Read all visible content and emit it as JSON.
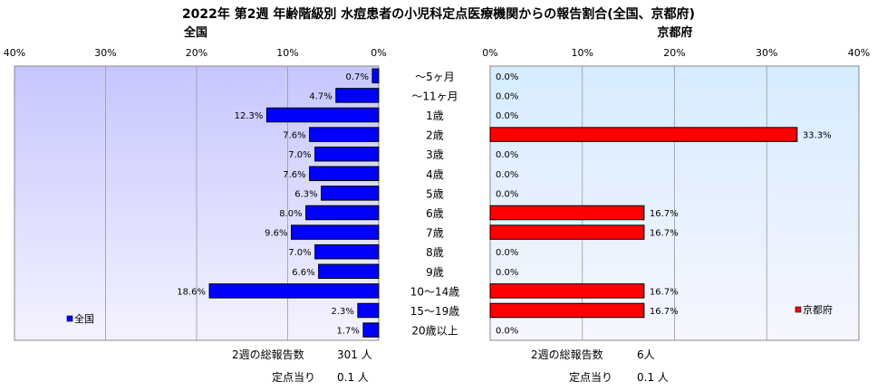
{
  "chart_data": [
    {
      "type": "bar",
      "orientation": "horizontal",
      "direction": "right-to-left",
      "title": "2022年 第2週 年齢階級別 水痘患者の小児科定点医療機関からの報告割合(全国、京都府)",
      "panel_title": "全国",
      "categories": [
        "～5ヶ月",
        "～11ヶ月",
        "1歳",
        "2歳",
        "3歳",
        "4歳",
        "5歳",
        "6歳",
        "7歳",
        "8歳",
        "9歳",
        "10～14歳",
        "15～19歳",
        "20歳以上"
      ],
      "series": [
        {
          "name": "全国",
          "values": [
            0.7,
            4.7,
            12.3,
            7.6,
            7.0,
            7.6,
            6.3,
            8.0,
            9.6,
            7.0,
            6.6,
            18.6,
            2.3,
            1.7
          ],
          "labels": [
            "0.7%",
            "4.7%",
            "12.3%",
            "7.6%",
            "7.0%",
            "7.6%",
            "6.3%",
            "8.0%",
            "9.6%",
            "7.0%",
            "6.6%",
            "18.6%",
            "2.3%",
            "1.7%"
          ],
          "color": "#0000ff"
        }
      ],
      "xlim": [
        0,
        40
      ],
      "ticks": [
        "40%",
        "30%",
        "20%",
        "10%",
        "0%"
      ],
      "grid": true,
      "legend_position": "bottom-left",
      "footer": [
        {
          "label": "2週の総報告数",
          "value": "301 人"
        },
        {
          "label": "定点当り",
          "value": "0.1 人"
        }
      ]
    },
    {
      "type": "bar",
      "orientation": "horizontal",
      "direction": "left-to-right",
      "panel_title": "京都府",
      "categories": [
        "～5ヶ月",
        "～11ヶ月",
        "1歳",
        "2歳",
        "3歳",
        "4歳",
        "5歳",
        "6歳",
        "7歳",
        "8歳",
        "9歳",
        "10～14歳",
        "15～19歳",
        "20歳以上"
      ],
      "series": [
        {
          "name": "京都府",
          "values": [
            0.0,
            0.0,
            0.0,
            33.3,
            0.0,
            0.0,
            0.0,
            16.7,
            16.7,
            0.0,
            0.0,
            16.7,
            16.7,
            0.0
          ],
          "labels": [
            "0.0%",
            "0.0%",
            "0.0%",
            "33.3%",
            "0.0%",
            "0.0%",
            "0.0%",
            "16.7%",
            "16.7%",
            "0.0%",
            "0.0%",
            "16.7%",
            "16.7%",
            "0.0%"
          ],
          "color": "#ff0000"
        }
      ],
      "xlim": [
        0,
        40
      ],
      "ticks": [
        "0%",
        "10%",
        "20%",
        "30%",
        "40%"
      ],
      "grid": true,
      "legend_position": "bottom-right",
      "footer": [
        {
          "label": "2週の総報告数",
          "value": "6人"
        },
        {
          "label": "定点当り",
          "value": "0.1 人"
        }
      ]
    }
  ],
  "colors": {
    "plot_bg_top": "#c8c8ff",
    "plot_bg_bottom": "#ffffff",
    "right_plot_bg_top": "#e8f8ff",
    "bar_left": "#0000ff",
    "bar_right": "#ff0000",
    "gridline": "#a0a0a0"
  }
}
